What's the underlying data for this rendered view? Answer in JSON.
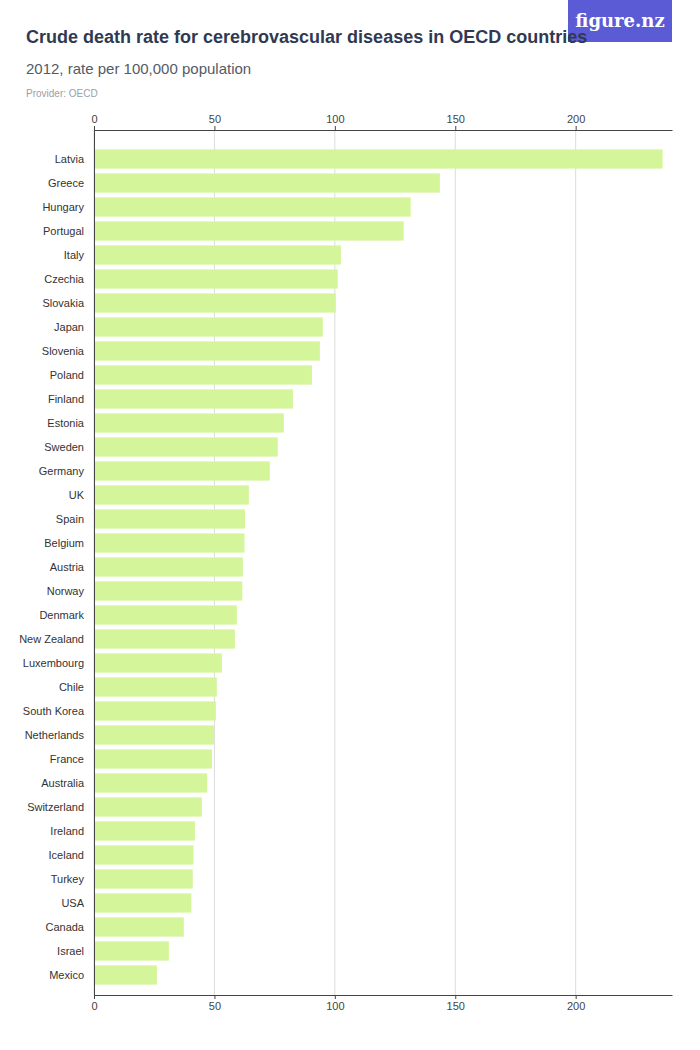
{
  "chart_data": {
    "type": "bar",
    "title": "Crude death rate for cerebrovascular diseases in OECD countries",
    "subtitle": "2012, rate per 100,000 population",
    "annotations": [
      "Provider: OECD",
      "figure.nz"
    ],
    "orientation": "horizontal",
    "categories": [
      "Latvia",
      "Greece",
      "Hungary",
      "Portugal",
      "Italy",
      "Czechia",
      "Slovakia",
      "Japan",
      "Slovenia",
      "Poland",
      "Finland",
      "Estonia",
      "Sweden",
      "Germany",
      "UK",
      "Spain",
      "Belgium",
      "Austria",
      "Norway",
      "Denmark",
      "New Zealand",
      "Luxembourg",
      "Chile",
      "South Korea",
      "Netherlands",
      "France",
      "Australia",
      "Switzerland",
      "Ireland",
      "Iceland",
      "Turkey",
      "USA",
      "Canada",
      "Israel",
      "Mexico"
    ],
    "values": [
      236.1,
      143.6,
      131.5,
      128.6,
      102.5,
      101.2,
      100.4,
      95.0,
      93.8,
      90.5,
      82.6,
      78.8,
      76.3,
      73.0,
      64.3,
      62.7,
      62.5,
      61.8,
      61.6,
      59.3,
      58.5,
      53.1,
      51.0,
      50.6,
      49.8,
      49.0,
      47.0,
      44.8,
      41.9,
      41.3,
      41.0,
      40.4,
      37.3,
      31.1,
      26.1
    ],
    "color": "#d5f59a",
    "xlim": [
      0,
      240
    ],
    "xticks": [
      0,
      50,
      100,
      150,
      200
    ],
    "grid": true
  }
}
